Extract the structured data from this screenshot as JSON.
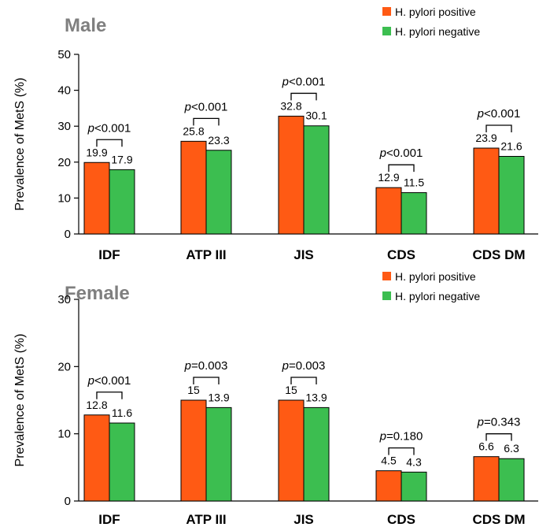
{
  "chart_data": [
    {
      "type": "bar",
      "title": "Male",
      "xlabel": "",
      "ylabel": "Prevalence of MetS (%)",
      "ylim": [
        0,
        50
      ],
      "yticks": [
        0,
        10,
        20,
        30,
        40,
        50
      ],
      "categories": [
        "IDF",
        "ATP III",
        "JIS",
        "CDS",
        "CDS DM"
      ],
      "series": [
        {
          "name": "H. pylori positive",
          "color": "#FF5A14",
          "values": [
            19.9,
            25.8,
            32.8,
            12.9,
            23.9
          ],
          "labels": [
            "19.9",
            "25.8",
            "32.8",
            "12.9",
            "23.9"
          ]
        },
        {
          "name": "H. pylori negative",
          "color": "#3CBE50",
          "values": [
            17.9,
            23.3,
            30.1,
            11.5,
            21.6
          ],
          "labels": [
            "17.9",
            "23.3",
            "30.1",
            "11.5",
            "21.6"
          ]
        }
      ],
      "p_values": [
        {
          "prefix": "p",
          "text": "<0.001"
        },
        {
          "prefix": "p",
          "text": "<0.001"
        },
        {
          "prefix": "p",
          "text": "<0.001"
        },
        {
          "prefix": "p",
          "text": "<0.001"
        },
        {
          "prefix": "p",
          "text": "<0.001"
        }
      ],
      "legend_position": "top-right",
      "grid": false
    },
    {
      "type": "bar",
      "title": "Female",
      "xlabel": "",
      "ylabel": "Prevalence of MetS (%)",
      "ylim": [
        0,
        30
      ],
      "yticks": [
        0,
        10,
        20,
        30
      ],
      "categories": [
        "IDF",
        "ATP III",
        "JIS",
        "CDS",
        "CDS DM"
      ],
      "series": [
        {
          "name": "H. pylori positive",
          "color": "#FF5A14",
          "values": [
            12.8,
            15,
            15,
            4.5,
            6.6
          ],
          "labels": [
            "12.8",
            "15",
            "15",
            "4.5",
            "6.6"
          ]
        },
        {
          "name": "H. pylori negative",
          "color": "#3CBE50",
          "values": [
            11.6,
            13.9,
            13.9,
            4.3,
            6.3
          ],
          "labels": [
            "11.6",
            "13.9",
            "13.9",
            "4.3",
            "6.3"
          ]
        }
      ],
      "p_values": [
        {
          "prefix": "p",
          "text": "<0.001"
        },
        {
          "prefix": "p",
          "text": "=0.003"
        },
        {
          "prefix": "p",
          "text": "=0.003"
        },
        {
          "prefix": "p",
          "text": "=0.180"
        },
        {
          "prefix": "p",
          "text": "=0.343"
        }
      ],
      "legend_position": "top-right",
      "grid": false
    }
  ]
}
